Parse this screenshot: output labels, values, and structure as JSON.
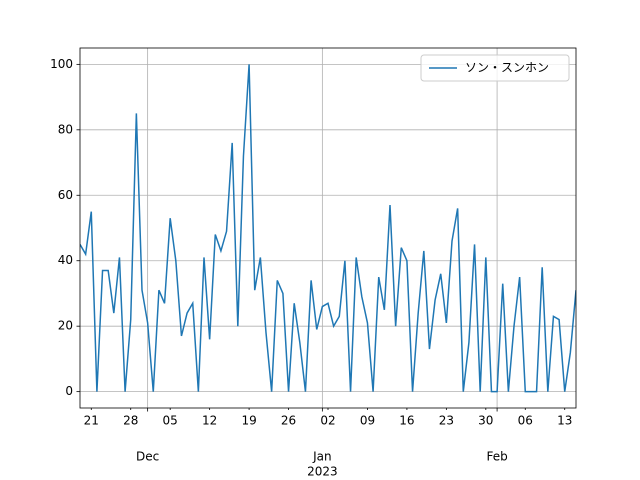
{
  "chart_data": {
    "type": "line",
    "x": [
      "2022-11-19",
      "2022-11-20",
      "2022-11-21",
      "2022-11-22",
      "2022-11-23",
      "2022-11-24",
      "2022-11-25",
      "2022-11-26",
      "2022-11-27",
      "2022-11-28",
      "2022-11-29",
      "2022-11-30",
      "2022-12-01",
      "2022-12-02",
      "2022-12-03",
      "2022-12-04",
      "2022-12-05",
      "2022-12-06",
      "2022-12-07",
      "2022-12-08",
      "2022-12-09",
      "2022-12-10",
      "2022-12-11",
      "2022-12-12",
      "2022-12-13",
      "2022-12-14",
      "2022-12-15",
      "2022-12-16",
      "2022-12-17",
      "2022-12-18",
      "2022-12-19",
      "2022-12-20",
      "2022-12-21",
      "2022-12-22",
      "2022-12-23",
      "2022-12-24",
      "2022-12-25",
      "2022-12-26",
      "2022-12-27",
      "2022-12-28",
      "2022-12-29",
      "2022-12-30",
      "2022-12-31",
      "2023-01-01",
      "2023-01-02",
      "2023-01-03",
      "2023-01-04",
      "2023-01-05",
      "2023-01-06",
      "2023-01-07",
      "2023-01-08",
      "2023-01-09",
      "2023-01-10",
      "2023-01-11",
      "2023-01-12",
      "2023-01-13",
      "2023-01-14",
      "2023-01-15",
      "2023-01-16",
      "2023-01-17",
      "2023-01-18",
      "2023-01-19",
      "2023-01-20",
      "2023-01-21",
      "2023-01-22",
      "2023-01-23",
      "2023-01-24",
      "2023-01-25",
      "2023-01-26",
      "2023-01-27",
      "2023-01-28",
      "2023-01-29",
      "2023-01-30",
      "2023-01-31",
      "2023-02-01",
      "2023-02-02",
      "2023-02-03",
      "2023-02-04",
      "2023-02-05",
      "2023-02-06",
      "2023-02-07",
      "2023-02-08",
      "2023-02-09",
      "2023-02-10",
      "2023-02-11",
      "2023-02-12",
      "2023-02-13",
      "2023-02-14",
      "2023-02-15"
    ],
    "series": [
      {
        "name": "ソン・スンホン",
        "color": "#1f77b4",
        "values": [
          45,
          42,
          55,
          0,
          37,
          37,
          24,
          41,
          0,
          22,
          85,
          31,
          21,
          0,
          31,
          27,
          53,
          40,
          17,
          24,
          27,
          0,
          41,
          16,
          48,
          43,
          49,
          76,
          20,
          72,
          100,
          31,
          41,
          18,
          0,
          34,
          30,
          0,
          27,
          15,
          0,
          34,
          19,
          26,
          27,
          20,
          23,
          40,
          0,
          41,
          29,
          21,
          0,
          35,
          25,
          57,
          20,
          44,
          40,
          0,
          24,
          43,
          13,
          28,
          36,
          21,
          46,
          56,
          0,
          15,
          45,
          0,
          41,
          0,
          0,
          33,
          0,
          20,
          35,
          0,
          0,
          0,
          38,
          0,
          23,
          22,
          0,
          12,
          31
        ]
      }
    ],
    "xlim": [
      "2022-11-19",
      "2023-02-15"
    ],
    "xticks": [
      {
        "value": "2022-12-01",
        "label": "Dec"
      },
      {
        "value": "2023-01-01",
        "label": "Jan"
      },
      {
        "value": "2023-02-01",
        "label": "Feb"
      }
    ],
    "x_year_label": "2023",
    "xticks_minor": [
      {
        "value": "2022-11-21",
        "label": "21"
      },
      {
        "value": "2022-11-28",
        "label": "28"
      },
      {
        "value": "2022-12-05",
        "label": "05"
      },
      {
        "value": "2022-12-12",
        "label": "12"
      },
      {
        "value": "2022-12-19",
        "label": "19"
      },
      {
        "value": "2022-12-26",
        "label": "26"
      },
      {
        "value": "2023-01-02",
        "label": "02"
      },
      {
        "value": "2023-01-09",
        "label": "09"
      },
      {
        "value": "2023-01-16",
        "label": "16"
      },
      {
        "value": "2023-01-23",
        "label": "23"
      },
      {
        "value": "2023-01-30",
        "label": "30"
      },
      {
        "value": "2023-02-06",
        "label": "06"
      },
      {
        "value": "2023-02-13",
        "label": "13"
      }
    ],
    "ylim": [
      -5,
      105
    ],
    "yticks": [
      0,
      20,
      40,
      60,
      80,
      100
    ],
    "grid": true,
    "legend": "upper right"
  }
}
